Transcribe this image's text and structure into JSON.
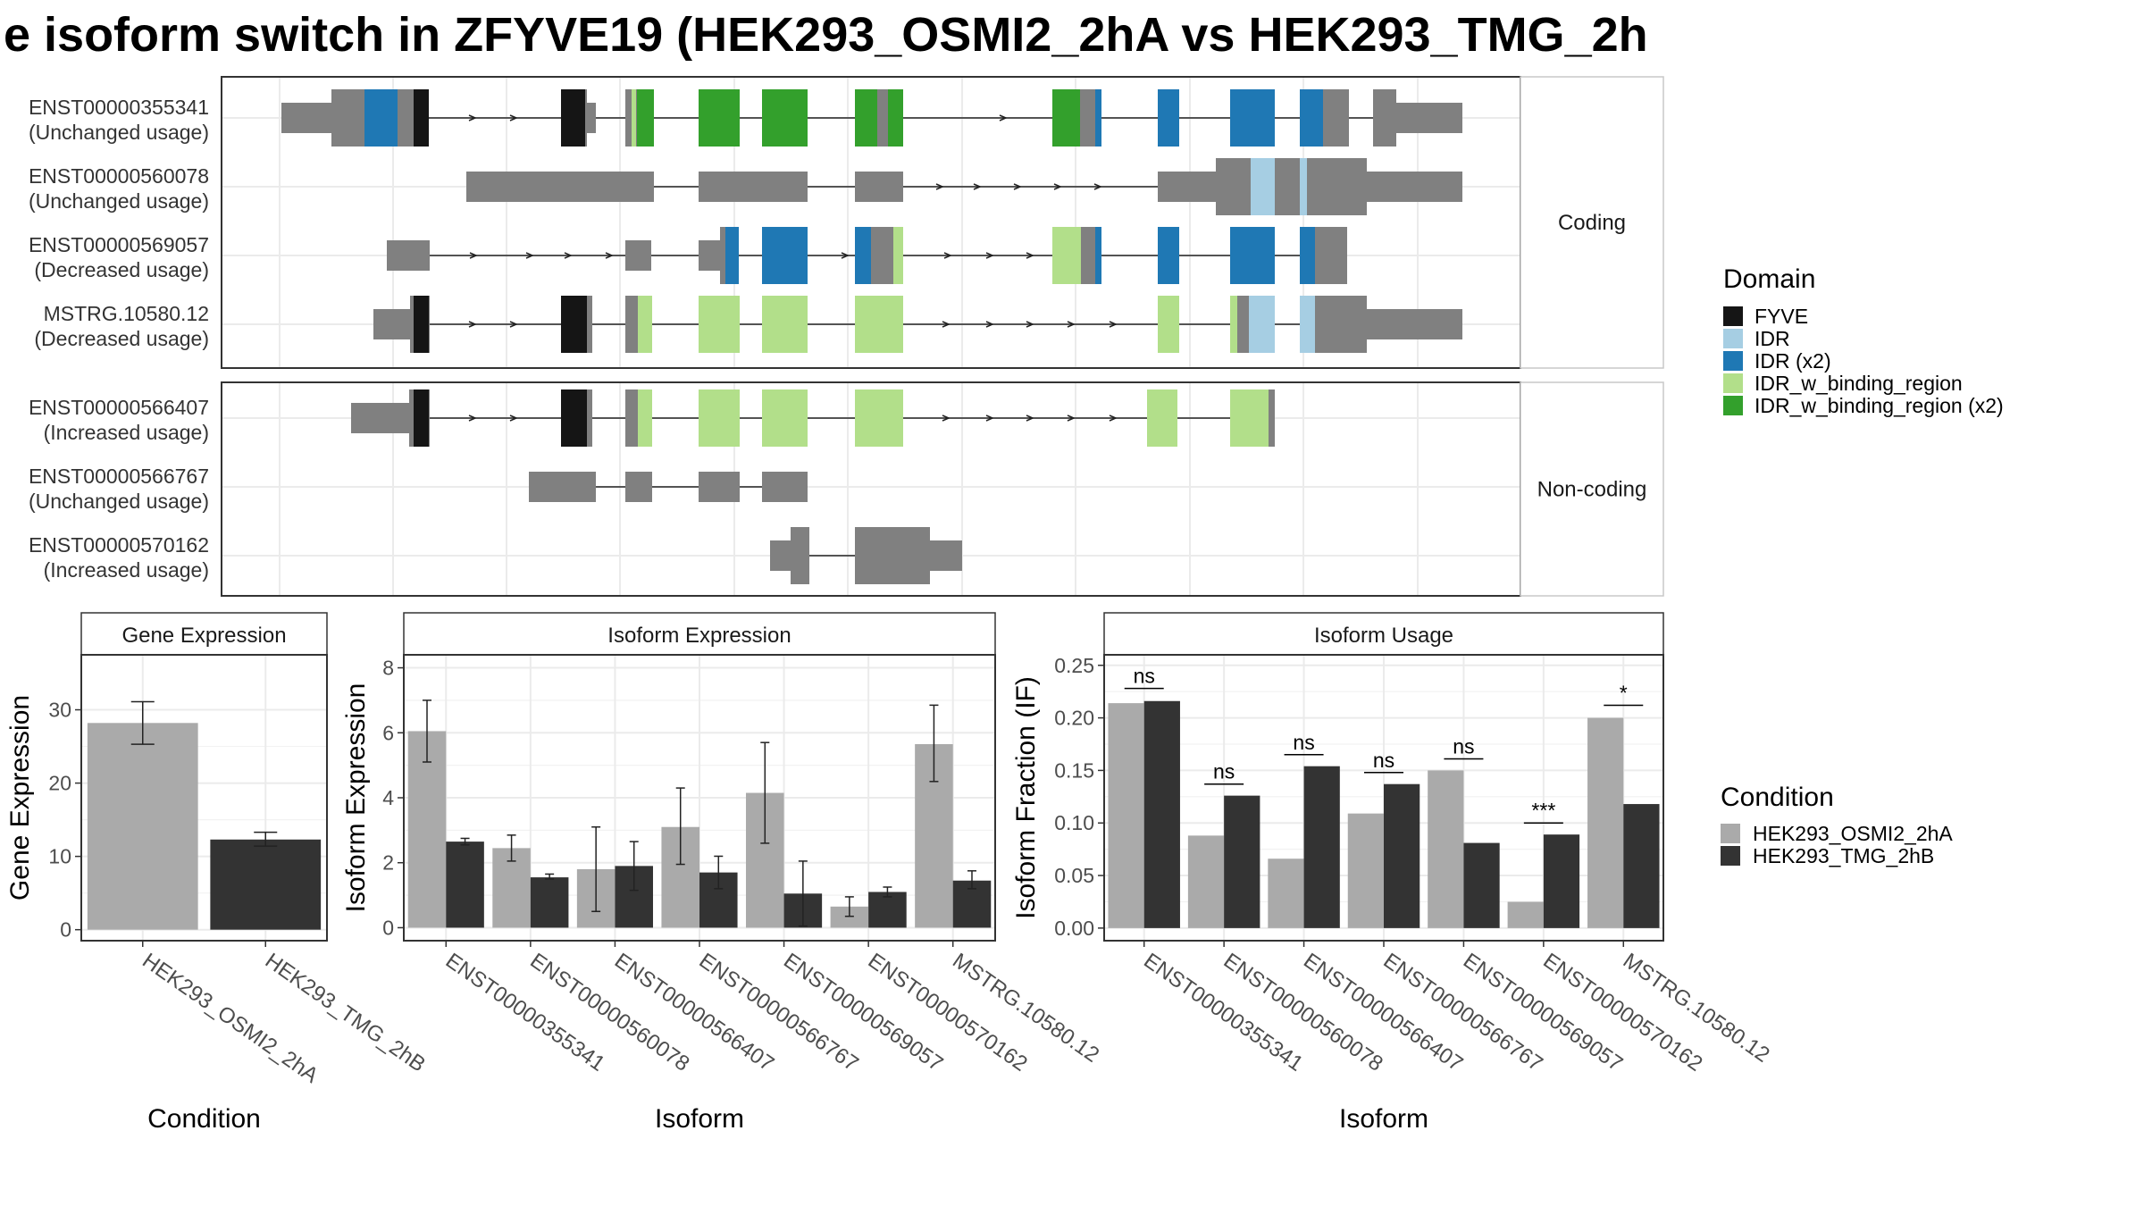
{
  "title": "e isoform switch in ZFYVE19 (HEK293_OSMI2_2hA vs HEK293_TMG_2h",
  "colors": {
    "FYVE": "#151515",
    "IDR": "#a6cee3",
    "IDR (x2)": "#1f78b4",
    "IDR_w_binding_region": "#b2df8a",
    "IDR_w_binding_region (x2)": "#33a02c",
    "utr": "#808080",
    "condA": "#aaaaaa",
    "condB": "#333333"
  },
  "structure": {
    "facets": [
      {
        "label": "Coding",
        "isoforms": [
          {
            "name": "ENST00000355341",
            "usage": "(Unchanged usage)",
            "exons": [
              [
                0,
                4.5,
                "utr"
              ],
              [
                4.5,
                6,
                "cds"
              ],
              [
                6,
                14,
                "cds"
              ],
              [
                16,
                18,
                "cds"
              ],
              [
                18,
                20,
                "cds"
              ],
              [
                24,
                26,
                "cds"
              ],
              [
                26,
                28,
                "cds"
              ],
              [
                32,
                36,
                "cds"
              ],
              [
                37,
                41,
                "cds"
              ],
              [
                44,
                47,
                "cds"
              ],
              [
                48,
                50,
                "cds"
              ],
              [
                61,
                64,
                "cds"
              ],
              [
                64,
                65,
                "cds"
              ],
              [
                75,
                77,
                "cds"
              ],
              [
                81,
                85,
                "cds"
              ],
              [
                87,
                89,
                "cds"
              ],
              [
                89,
                92,
                "cds"
              ],
              [
                95,
                97,
                "cds"
              ],
              [
                97,
                104,
                "utr"
              ]
            ],
            "domains": [
              [
                7.5,
                10.5,
                "IDR (x2)"
              ],
              [
                12,
                13.5,
                "FYVE"
              ],
              [
                25,
                27.5,
                "FYVE"
              ],
              [
                32,
                33,
                "IDR_w_binding_region (x2)"
              ],
              [
                37,
                41,
                "IDR_w_binding_region (x2)"
              ],
              [
                42,
                46,
                "IDR_w_binding_region (x2)"
              ],
              [
                49,
                51,
                "IDR_w_binding_region (x2)"
              ],
              [
                61,
                63,
                "IDR_w_binding_region (x2)"
              ],
              [
                73,
                75,
                "IDR_w_binding_region (x2)"
              ],
              [
                79,
                82,
                "IDR (x2)"
              ],
              [
                85,
                89,
                "IDR (x2)"
              ],
              [
                92,
                95,
                "IDR (x2)"
              ],
              [
                99,
                103,
                "IDR (x2)"
              ],
              [
                108,
                110,
                "IDR (x2)"
              ]
            ]
          },
          {
            "name": "ENST00000560078",
            "usage": "(Unchanged usage)",
            "exons": [],
            "domains": []
          },
          {
            "name": "ENST00000569057",
            "usage": "(Decreased usage)",
            "exons": [],
            "domains": []
          },
          {
            "name": "MSTRG.10580.12",
            "usage": "(Decreased usage)",
            "exons": [],
            "domains": []
          }
        ]
      },
      {
        "label": "Non-coding",
        "isoforms": [
          {
            "name": "ENST00000566407",
            "usage": "(Increased usage)",
            "exons": [],
            "domains": []
          },
          {
            "name": "ENST00000566767",
            "usage": "(Unchanged usage)",
            "exons": [],
            "domains": []
          },
          {
            "name": "ENST00000570162",
            "usage": "(Increased usage)",
            "exons": [],
            "domains": []
          }
        ]
      }
    ]
  },
  "legends": {
    "domain": {
      "title": "Domain",
      "items": [
        {
          "label": "FYVE",
          "color": "#151515"
        },
        {
          "label": "IDR",
          "color": "#a6cee3"
        },
        {
          "label": "IDR (x2)",
          "color": "#1f78b4"
        },
        {
          "label": "IDR_w_binding_region",
          "color": "#b2df8a"
        },
        {
          "label": "IDR_w_binding_region (x2)",
          "color": "#33a02c"
        }
      ]
    },
    "condition": {
      "title": "Condition",
      "items": [
        {
          "label": "HEK293_OSMI2_2hA",
          "color": "#aaaaaa"
        },
        {
          "label": "HEK293_TMG_2hB",
          "color": "#333333"
        }
      ]
    }
  },
  "chart_data": [
    {
      "type": "bar",
      "title": "Gene Expression",
      "xlabel": "Condition",
      "ylabel": "Gene Expression",
      "categories": [
        "HEK293_OSMI2_2hA",
        "HEK293_TMG_2hB"
      ],
      "values": [
        28.2,
        12.3
      ],
      "errors": [
        [
          25.3,
          31.1
        ],
        [
          11.4,
          13.3
        ]
      ],
      "ylim": [
        -1.5,
        37.5
      ],
      "yticks": [
        0,
        10,
        20,
        30
      ],
      "grid": true
    },
    {
      "type": "bar",
      "title": "Isoform Expression",
      "xlabel": "Isoform",
      "ylabel": "Isoform Expression",
      "categories": [
        "ENST00000355341",
        "ENST00000560078",
        "ENST00000566407",
        "ENST00000566767",
        "ENST00000569057",
        "ENST00000570162",
        "MSTRG.10580.12"
      ],
      "series": [
        {
          "name": "HEK293_OSMI2_2hA",
          "values": [
            6.05,
            2.45,
            1.8,
            3.1,
            4.15,
            0.65,
            5.65
          ],
          "errors": [
            [
              5.1,
              7.0
            ],
            [
              2.05,
              2.85
            ],
            [
              0.5,
              3.1
            ],
            [
              1.95,
              4.3
            ],
            [
              2.6,
              5.7
            ],
            [
              0.35,
              0.95
            ],
            [
              4.5,
              6.85
            ]
          ]
        },
        {
          "name": "HEK293_TMG_2hB",
          "values": [
            2.65,
            1.55,
            1.9,
            1.7,
            1.05,
            1.1,
            1.45
          ],
          "errors": [
            [
              2.55,
              2.75
            ],
            [
              1.5,
              1.65
            ],
            [
              1.15,
              2.65
            ],
            [
              1.2,
              2.2
            ],
            [
              0.05,
              2.05
            ],
            [
              0.95,
              1.25
            ],
            [
              1.2,
              1.75
            ]
          ]
        }
      ],
      "ylim": [
        -0.4,
        8.4
      ],
      "yticks": [
        0,
        2,
        4,
        6,
        8
      ],
      "grid": true
    },
    {
      "type": "bar",
      "title": "Isoform Usage",
      "xlabel": "Isoform",
      "ylabel": "Isoform Fraction (IF)",
      "categories": [
        "ENST00000355341",
        "ENST00000560078",
        "ENST00000566407",
        "ENST00000566767",
        "ENST00000569057",
        "ENST00000570162",
        "MSTRG.10580.12"
      ],
      "series": [
        {
          "name": "HEK293_OSMI2_2hA",
          "values": [
            0.214,
            0.088,
            0.066,
            0.109,
            0.15,
            0.025,
            0.2
          ]
        },
        {
          "name": "HEK293_TMG_2hB",
          "values": [
            0.216,
            0.126,
            0.154,
            0.137,
            0.081,
            0.089,
            0.118
          ]
        }
      ],
      "significance": [
        "ns",
        "ns",
        "ns",
        "ns",
        "ns",
        "***",
        "*"
      ],
      "sig_y": [
        0.228,
        0.137,
        0.165,
        0.148,
        0.161,
        0.1,
        0.212
      ],
      "ylim": [
        -0.012,
        0.26
      ],
      "yticks": [
        0.0,
        0.05,
        0.1,
        0.15,
        0.2,
        0.25
      ],
      "ytick_labels": [
        "0.00",
        "0.05",
        "0.10",
        "0.15",
        "0.20",
        "0.25"
      ],
      "grid": true
    }
  ]
}
